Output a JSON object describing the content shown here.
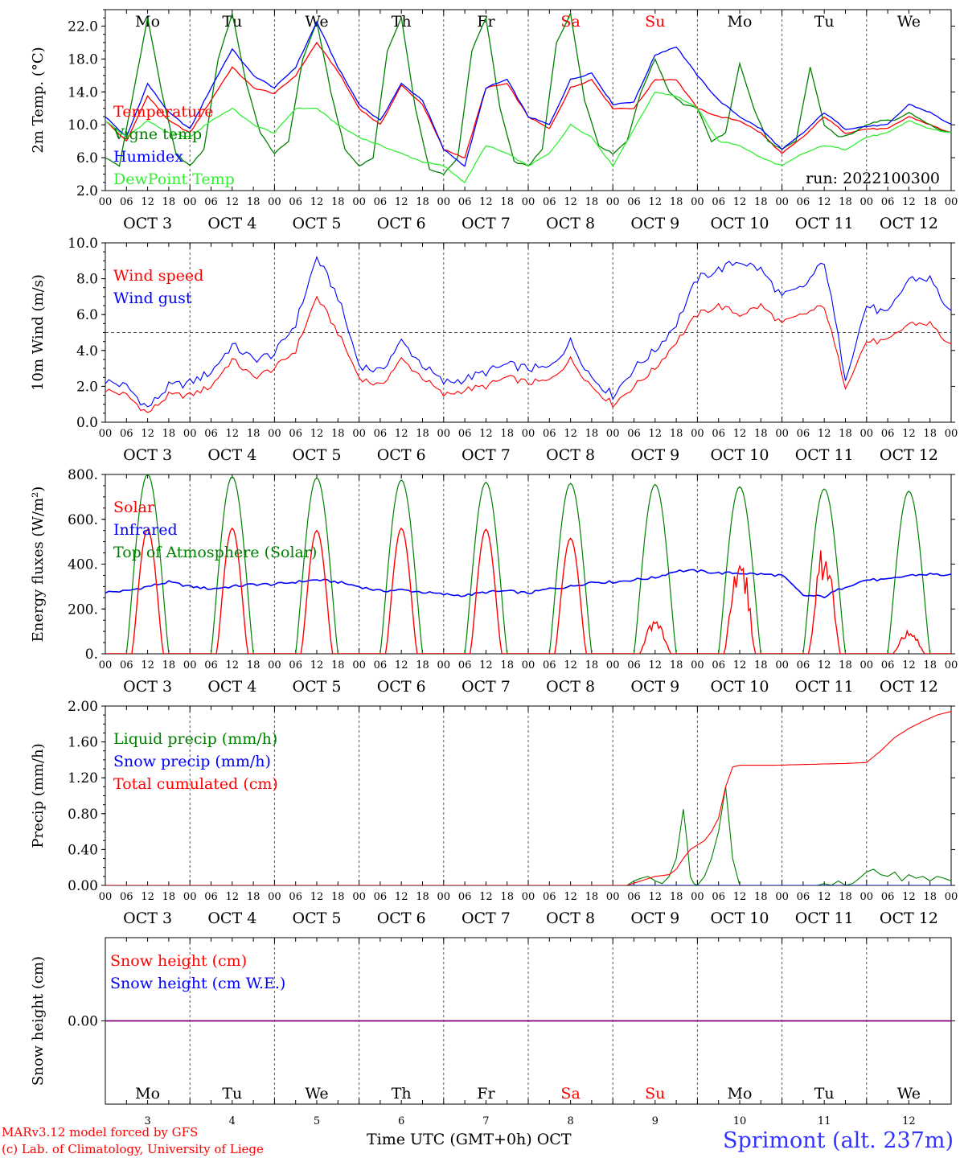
{
  "colors": {
    "red": "#ff0000",
    "darkgreen": "#008000",
    "blue": "#0000ff",
    "lightgreen": "#33ee33",
    "purple": "#800080",
    "grid": "#555555",
    "footer_blue": "#3333ff"
  },
  "date_labels": [
    "OCT  3",
    "OCT  4",
    "OCT  5",
    "OCT  6",
    "OCT  7",
    "OCT  8",
    "OCT  9",
    "OCT 10",
    "OCT 11",
    "OCT 12"
  ],
  "hour_ticks": [
    "00",
    "06",
    "12",
    "18"
  ],
  "hour_end": "00",
  "weekdays": [
    {
      "label": "Mo",
      "weekend": false
    },
    {
      "label": "Tu",
      "weekend": false
    },
    {
      "label": "We",
      "weekend": false
    },
    {
      "label": "Th",
      "weekend": false
    },
    {
      "label": "Fr",
      "weekend": false
    },
    {
      "label": "Sa",
      "weekend": true
    },
    {
      "label": "Su",
      "weekend": true
    },
    {
      "label": "Mo",
      "weekend": false
    },
    {
      "label": "Tu",
      "weekend": false
    },
    {
      "label": "We",
      "weekend": false
    }
  ],
  "day_numbers": [
    "3",
    "4",
    "5",
    "6",
    "7",
    "8",
    "9",
    "10",
    "11",
    "12"
  ],
  "footer": {
    "left_line1": "MARv3.12 model forced by GFS",
    "left_line2": "(c) Lab. of Climatology, University of Liege",
    "xlabel": "Time UTC (GMT+0h) OCT",
    "station": "Sprimont (alt. 237m)"
  },
  "chart_data": [
    {
      "type": "line",
      "ylabel": "2m Temp. (°C)",
      "ylim": [
        2,
        24
      ],
      "yticks": [
        "2.0",
        "6.0",
        "10.0",
        "14.0",
        "18.0",
        "22.0"
      ],
      "yticks_values": [
        2,
        6,
        10,
        14,
        18,
        22
      ],
      "annotation": "run: 2022100300",
      "x_unit": "hours since OCT 3 00 UTC",
      "series": [
        {
          "name": "Temperature",
          "color": "#ff0000",
          "x": [
            0,
            6,
            12,
            18,
            24,
            30,
            36,
            42,
            48,
            54,
            60,
            66,
            72,
            78,
            84,
            90,
            96,
            102,
            108,
            114,
            120,
            126,
            132,
            138,
            144,
            150,
            156,
            162,
            168,
            174,
            180,
            186,
            192,
            198,
            204,
            210,
            216,
            222,
            228,
            234,
            240
          ],
          "values": [
            10.5,
            8.0,
            13.5,
            10.5,
            9.0,
            13.0,
            17.0,
            14.5,
            13.8,
            16.0,
            20.0,
            16.5,
            12.0,
            10.0,
            14.8,
            12.5,
            7.0,
            6.0,
            14.5,
            15.0,
            11.0,
            9.5,
            14.5,
            15.5,
            12.0,
            12.0,
            15.5,
            15.5,
            12.0,
            11.0,
            10.5,
            9.0,
            6.5,
            8.5,
            11.0,
            9.0,
            9.5,
            9.5,
            11.0,
            10.0,
            9.0
          ]
        },
        {
          "name": "Vigne temp",
          "color": "#008000",
          "x": [
            0,
            4,
            8,
            12,
            16,
            20,
            24,
            28,
            32,
            36,
            40,
            44,
            48,
            52,
            56,
            60,
            64,
            68,
            72,
            76,
            80,
            84,
            88,
            92,
            96,
            100,
            104,
            108,
            112,
            116,
            120,
            124,
            128,
            132,
            136,
            140,
            144,
            148,
            152,
            156,
            160,
            164,
            168,
            172,
            176,
            180,
            184,
            188,
            192,
            196,
            200,
            204,
            208,
            212,
            216,
            220,
            224,
            228,
            232,
            236,
            240
          ],
          "values": [
            6.0,
            5.0,
            14.0,
            23.0,
            14.0,
            6.5,
            5.0,
            7.0,
            18.0,
            23.5,
            15.0,
            9.0,
            6.5,
            8.0,
            18.0,
            22.5,
            14.0,
            7.0,
            5.0,
            6.0,
            19.0,
            23.0,
            12.0,
            4.5,
            4.0,
            6.0,
            19.0,
            23.0,
            12.0,
            5.5,
            5.0,
            7.0,
            20.0,
            23.5,
            13.0,
            7.5,
            6.5,
            8.0,
            14.0,
            18.0,
            14.0,
            12.5,
            12.0,
            8.0,
            9.0,
            17.5,
            12.0,
            8.0,
            7.0,
            8.0,
            17.0,
            10.0,
            8.5,
            9.0,
            10.0,
            10.5,
            10.5,
            11.5,
            10.5,
            9.5,
            9.0
          ]
        },
        {
          "name": "Humidex",
          "color": "#0000ff",
          "x": [
            0,
            6,
            12,
            18,
            24,
            30,
            36,
            42,
            48,
            54,
            60,
            66,
            72,
            78,
            84,
            90,
            96,
            102,
            108,
            114,
            120,
            126,
            132,
            138,
            144,
            150,
            156,
            162,
            168,
            174,
            180,
            186,
            192,
            198,
            204,
            210,
            216,
            222,
            228,
            234,
            240
          ],
          "values": [
            11.0,
            8.5,
            15.0,
            11.5,
            9.5,
            14.5,
            19.2,
            16.0,
            14.5,
            17.0,
            22.5,
            17.0,
            12.5,
            10.5,
            15.0,
            13.0,
            7.0,
            5.0,
            14.5,
            15.5,
            11.0,
            10.0,
            15.5,
            16.3,
            12.5,
            12.8,
            18.5,
            19.5,
            16.0,
            13.0,
            11.0,
            9.5,
            7.0,
            9.0,
            11.5,
            9.5,
            9.8,
            10.0,
            12.5,
            11.5,
            10.0
          ]
        },
        {
          "name": "DewPoint Temp",
          "color": "#33ee33",
          "x": [
            0,
            6,
            12,
            18,
            24,
            30,
            36,
            42,
            48,
            54,
            60,
            66,
            72,
            78,
            84,
            90,
            96,
            102,
            108,
            114,
            120,
            126,
            132,
            138,
            144,
            150,
            156,
            162,
            168,
            174,
            180,
            186,
            192,
            198,
            204,
            210,
            216,
            222,
            228,
            234,
            240
          ],
          "values": [
            10.5,
            8.5,
            10.5,
            9.0,
            8.5,
            10.5,
            12.0,
            10.0,
            9.0,
            12.0,
            12.0,
            10.0,
            8.5,
            7.5,
            6.5,
            5.5,
            5.0,
            3.0,
            7.5,
            6.5,
            5.0,
            6.5,
            10.0,
            8.5,
            5.0,
            9.5,
            14.0,
            13.5,
            12.0,
            8.0,
            7.5,
            6.0,
            5.0,
            6.5,
            7.5,
            7.0,
            8.5,
            9.0,
            10.5,
            9.5,
            9.0
          ]
        }
      ]
    },
    {
      "type": "line",
      "ylabel": "10m Wind (m/s)",
      "ylim": [
        0,
        10
      ],
      "yticks": [
        "0.0",
        "2.0",
        "4.0",
        "6.0",
        "8.0",
        "10.0"
      ],
      "yticks_values": [
        0,
        2,
        4,
        6,
        8,
        10
      ],
      "reference_line": 5,
      "x_unit": "hours since OCT 3 00 UTC",
      "series": [
        {
          "name": "Wind speed",
          "color": "#ff0000",
          "x": [
            0,
            6,
            12,
            18,
            24,
            30,
            36,
            42,
            48,
            54,
            60,
            66,
            72,
            78,
            84,
            90,
            96,
            102,
            108,
            114,
            120,
            126,
            132,
            138,
            144,
            150,
            156,
            162,
            168,
            174,
            180,
            186,
            192,
            198,
            204,
            210,
            216,
            222,
            228,
            234,
            240
          ],
          "values": [
            1.8,
            1.5,
            0.5,
            1.5,
            1.5,
            2.0,
            3.5,
            2.5,
            3.0,
            4.0,
            7.0,
            5.0,
            2.5,
            2.0,
            3.5,
            2.5,
            1.5,
            1.8,
            2.0,
            2.5,
            2.2,
            2.3,
            3.5,
            2.0,
            1.0,
            2.0,
            3.0,
            4.5,
            6.0,
            6.5,
            6.0,
            6.5,
            5.5,
            6.0,
            6.5,
            2.0,
            4.5,
            4.5,
            5.5,
            5.5,
            4.2
          ]
        },
        {
          "name": "Wind gust",
          "color": "#0000ff",
          "x": [
            0,
            6,
            12,
            18,
            24,
            30,
            36,
            42,
            48,
            54,
            60,
            66,
            72,
            78,
            84,
            90,
            96,
            102,
            108,
            114,
            120,
            126,
            132,
            138,
            144,
            150,
            156,
            162,
            168,
            174,
            180,
            186,
            192,
            198,
            204,
            210,
            216,
            222,
            228,
            234,
            240
          ],
          "values": [
            2.3,
            2.0,
            0.8,
            2.0,
            2.2,
            2.8,
            4.3,
            3.5,
            3.8,
            5.5,
            9.2,
            7.0,
            3.2,
            2.8,
            4.5,
            3.2,
            2.2,
            2.4,
            2.8,
            3.2,
            3.0,
            3.0,
            4.5,
            2.5,
            1.5,
            3.0,
            4.0,
            5.5,
            8.0,
            8.5,
            9.0,
            8.5,
            7.0,
            7.5,
            9.0,
            2.5,
            6.5,
            6.0,
            8.0,
            8.0,
            6.0
          ]
        }
      ]
    },
    {
      "type": "line",
      "ylabel": "Energy fluxes (W/m²)",
      "ylim": [
        0,
        800
      ],
      "yticks": [
        "0.",
        "200.",
        "400.",
        "600.",
        "800."
      ],
      "yticks_values": [
        0,
        200,
        400,
        600,
        800
      ],
      "x_unit": "hours since OCT 3 00 UTC",
      "daily_peaks": {
        "solar": [
          555,
          560,
          550,
          560,
          555,
          515,
          160,
          500,
          510,
          120
        ],
        "top_of_atmosphere": [
          800,
          790,
          785,
          775,
          765,
          760,
          755,
          745,
          735,
          725
        ]
      },
      "series": [
        {
          "name": "Solar",
          "color": "#ff0000"
        },
        {
          "name": "Infrared",
          "color": "#0000ff",
          "x": [
            0,
            6,
            12,
            18,
            24,
            30,
            36,
            42,
            48,
            54,
            60,
            66,
            72,
            78,
            84,
            90,
            96,
            102,
            108,
            114,
            120,
            126,
            132,
            138,
            144,
            150,
            156,
            162,
            168,
            174,
            180,
            186,
            192,
            198,
            204,
            210,
            216,
            222,
            228,
            234,
            240
          ],
          "values": [
            275,
            280,
            300,
            320,
            300,
            290,
            300,
            310,
            310,
            320,
            330,
            320,
            300,
            280,
            285,
            275,
            265,
            260,
            275,
            280,
            270,
            290,
            300,
            320,
            320,
            330,
            340,
            370,
            370,
            360,
            360,
            355,
            350,
            260,
            255,
            300,
            330,
            330,
            350,
            355,
            350
          ]
        },
        {
          "name": "Top of Atmosphere (Solar)",
          "color": "#008000"
        }
      ]
    },
    {
      "type": "line",
      "ylabel": "Precip (mm/h)",
      "ylim": [
        0,
        2.0
      ],
      "yticks": [
        "0.00",
        "0.40",
        "0.80",
        "1.20",
        "1.60",
        "2.00"
      ],
      "yticks_values": [
        0,
        0.4,
        0.8,
        1.2,
        1.6,
        2.0
      ],
      "x_unit": "hours since OCT 3 00 UTC",
      "series": [
        {
          "name": "Liquid precip (mm/h)",
          "color": "#008000",
          "x": [
            0,
            148,
            150,
            152,
            154,
            156,
            158,
            160,
            162,
            164,
            165,
            166,
            167,
            168,
            170,
            172,
            174,
            176,
            178,
            180,
            182,
            184,
            186,
            188,
            190,
            192,
            194,
            196,
            198,
            200,
            202,
            204,
            206,
            208,
            210,
            212,
            214,
            216,
            218,
            220,
            222,
            224,
            226,
            228,
            230,
            232,
            234,
            236,
            238,
            240
          ],
          "values": [
            0,
            0,
            0.05,
            0.08,
            0.1,
            0.05,
            0.02,
            0.1,
            0.3,
            0.85,
            0.5,
            0.1,
            0.02,
            0,
            0.1,
            0.3,
            0.6,
            1.1,
            0.3,
            0,
            0,
            0,
            0,
            0,
            0,
            0,
            0,
            0,
            0,
            0,
            0,
            0.02,
            0,
            0.05,
            0,
            0.02,
            0.08,
            0.15,
            0.18,
            0.12,
            0.1,
            0.15,
            0.05,
            0.12,
            0.08,
            0.1,
            0.05,
            0.1,
            0.08,
            0.05
          ]
        },
        {
          "name": "Snow precip (mm/h)",
          "color": "#0000ff",
          "x": [
            0,
            240
          ],
          "values": [
            0,
            0
          ]
        },
        {
          "name": "Total cumulated (cm)",
          "color": "#ff0000",
          "x": [
            0,
            148,
            152,
            156,
            160,
            162,
            164,
            166,
            168,
            170,
            172,
            174,
            176,
            178,
            180,
            190,
            200,
            210,
            216,
            220,
            224,
            228,
            232,
            236,
            240
          ],
          "values": [
            0,
            0,
            0.05,
            0.1,
            0.12,
            0.18,
            0.3,
            0.4,
            0.45,
            0.5,
            0.6,
            0.75,
            1.1,
            1.32,
            1.34,
            1.34,
            1.35,
            1.36,
            1.37,
            1.5,
            1.65,
            1.75,
            1.83,
            1.9,
            1.94
          ]
        }
      ]
    },
    {
      "type": "line",
      "ylabel": "Snow height (cm)",
      "yticks": [
        "0.00"
      ],
      "yticks_values": [
        0
      ],
      "ylim": [
        -1,
        1
      ],
      "x_unit": "hours since OCT 3 00 UTC",
      "series": [
        {
          "name": "Snow height (cm)",
          "color": "#ff0000",
          "x": [
            0,
            240
          ],
          "values": [
            0,
            0
          ]
        },
        {
          "name": "Snow height (cm W.E.)",
          "color": "#0000ff",
          "x": [
            0,
            240
          ],
          "values": [
            0,
            0
          ]
        }
      ]
    }
  ]
}
